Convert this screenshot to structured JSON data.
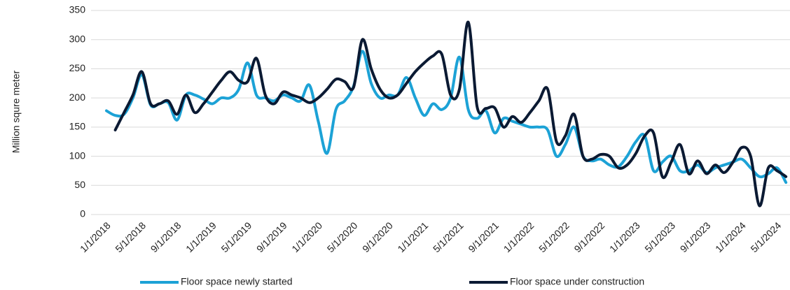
{
  "chart_data": {
    "type": "line",
    "y_label": "Million squre meter",
    "categories": [
      "1/1/2018",
      null,
      null,
      null,
      "5/1/2018",
      null,
      null,
      null,
      "9/1/2018",
      null,
      null,
      null,
      "1/1/2019",
      null,
      null,
      null,
      "5/1/2019",
      null,
      null,
      null,
      "9/1/2019",
      null,
      null,
      null,
      "1/1/2020",
      null,
      null,
      null,
      "5/1/2020",
      null,
      null,
      null,
      "9/1/2020",
      null,
      null,
      null,
      "1/1/2021",
      null,
      null,
      null,
      "5/1/2021",
      null,
      null,
      null,
      "9/1/2021",
      null,
      null,
      null,
      "1/1/2022",
      null,
      null,
      null,
      "5/1/2022",
      null,
      null,
      null,
      "9/1/2022",
      null,
      null,
      null,
      "1/1/2023",
      null,
      null,
      null,
      "5/1/2023",
      null,
      null,
      null,
      "9/1/2023",
      null,
      null,
      null,
      "1/1/2024",
      null,
      null,
      null,
      "5/1/2024",
      null
    ],
    "series": [
      {
        "name": "Floor space newly started",
        "color": "#1ca2d6",
        "values": [
          178,
          170,
          172,
          200,
          240,
          188,
          190,
          192,
          162,
          205,
          205,
          198,
          190,
          200,
          200,
          215,
          260,
          205,
          200,
          195,
          205,
          200,
          195,
          222,
          160,
          105,
          180,
          195,
          220,
          280,
          225,
          200,
          205,
          205,
          235,
          200,
          170,
          190,
          180,
          200,
          270,
          180,
          165,
          178,
          140,
          165,
          160,
          155,
          150,
          150,
          145,
          100,
          120,
          150,
          100,
          92,
          95,
          85,
          82,
          100,
          125,
          135,
          75,
          90,
          100,
          75,
          75,
          85,
          72,
          80,
          85,
          90,
          95,
          80,
          65,
          70,
          80,
          55
        ]
      },
      {
        "name": "Floor space under construction",
        "color": "#0b1a33",
        "values": [
          null,
          145,
          175,
          205,
          245,
          190,
          190,
          195,
          172,
          205,
          175,
          190,
          210,
          230,
          245,
          230,
          228,
          268,
          205,
          190,
          210,
          205,
          200,
          192,
          200,
          215,
          232,
          228,
          218,
          300,
          250,
          215,
          200,
          205,
          225,
          245,
          260,
          272,
          275,
          205,
          215,
          330,
          185,
          182,
          183,
          150,
          168,
          158,
          175,
          195,
          215,
          125,
          135,
          172,
          100,
          95,
          103,
          100,
          80,
          85,
          105,
          135,
          140,
          65,
          90,
          120,
          70,
          92,
          70,
          85,
          72,
          90,
          115,
          100,
          15,
          80,
          75,
          65
        ]
      }
    ],
    "ylim": [
      0,
      350
    ],
    "yticks": [
      0,
      50,
      100,
      150,
      200,
      250,
      300,
      350
    ],
    "grid": true,
    "legend": "bottom"
  }
}
